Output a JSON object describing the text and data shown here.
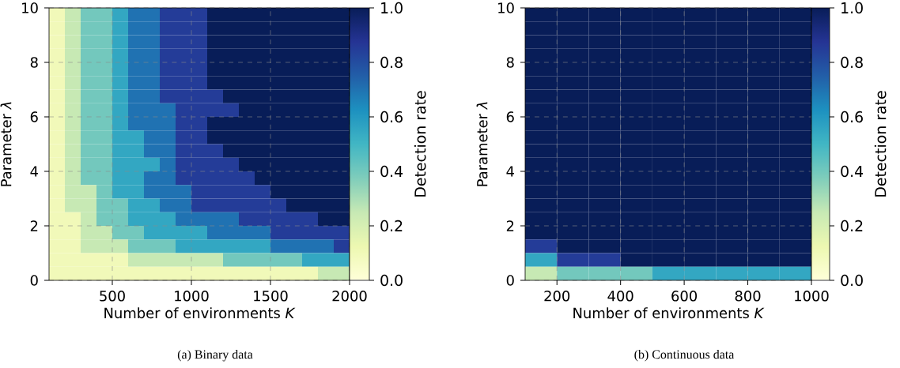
{
  "chart_data": [
    {
      "type": "heatmap",
      "xlabel": "Number of environments *K*",
      "ylabel": "Parameter *λ*",
      "clabel": "Detection rate",
      "annotations": [
        "(a) Binary data"
      ],
      "x": [
        150,
        250,
        350,
        450,
        550,
        650,
        750,
        850,
        950,
        1050,
        1150,
        1250,
        1350,
        1450,
        1550,
        1650,
        1750,
        1850,
        1950
      ],
      "xlim": [
        100,
        2000
      ],
      "ylim": [
        0,
        10
      ],
      "xticks": [
        500,
        1000,
        1500,
        2000
      ],
      "yticks": [
        0,
        2,
        4,
        6,
        8,
        10
      ],
      "grid": true,
      "clim": [
        0,
        1
      ],
      "cticks": [
        {
          "value": 0,
          "label": "0.0"
        },
        {
          "value": 0.2,
          "label": "0.2"
        },
        {
          "value": 0.4,
          "label": "0.4"
        },
        {
          "value": 0.6,
          "label": "0.6"
        },
        {
          "value": 0.8,
          "label": "0.8"
        },
        {
          "value": 1,
          "label": "1.0"
        }
      ],
      "cells": [
        [
          0.1,
          0.25,
          0.4,
          0.4,
          0.55,
          0.7,
          0.7,
          0.85,
          0.85,
          0.85,
          1,
          1,
          1,
          1,
          1,
          1,
          1,
          1,
          1
        ],
        [
          0.1,
          0.25,
          0.4,
          0.4,
          0.55,
          0.7,
          0.7,
          0.85,
          0.85,
          0.85,
          1,
          1,
          1,
          1,
          1,
          1,
          1,
          1,
          1
        ],
        [
          0.1,
          0.25,
          0.4,
          0.4,
          0.55,
          0.7,
          0.7,
          0.85,
          0.85,
          0.85,
          1,
          1,
          1,
          1,
          1,
          1,
          1,
          1,
          1
        ],
        [
          0.1,
          0.25,
          0.4,
          0.4,
          0.55,
          0.7,
          0.7,
          0.85,
          0.85,
          0.85,
          1,
          1,
          1,
          1,
          1,
          1,
          1,
          1,
          1
        ],
        [
          0.1,
          0.25,
          0.4,
          0.4,
          0.55,
          0.7,
          0.7,
          0.85,
          0.85,
          0.85,
          1,
          1,
          1,
          1,
          1,
          1,
          1,
          1,
          1
        ],
        [
          0.1,
          0.25,
          0.4,
          0.4,
          0.55,
          0.7,
          0.7,
          0.85,
          0.85,
          0.85,
          1,
          1,
          1,
          1,
          1,
          1,
          1,
          1,
          1
        ],
        [
          0.1,
          0.25,
          0.4,
          0.4,
          0.55,
          0.7,
          0.7,
          0.85,
          0.85,
          0.85,
          0.85,
          1,
          1,
          1,
          1,
          1,
          1,
          1,
          1
        ],
        [
          0.1,
          0.25,
          0.4,
          0.4,
          0.55,
          0.7,
          0.7,
          0.7,
          0.85,
          0.85,
          0.85,
          0.85,
          1,
          1,
          1,
          1,
          1,
          1,
          1
        ],
        [
          0.1,
          0.25,
          0.4,
          0.4,
          0.55,
          0.7,
          0.7,
          0.7,
          0.85,
          0.85,
          1,
          1,
          1,
          1,
          1,
          1,
          1,
          1,
          1
        ],
        [
          0.1,
          0.25,
          0.4,
          0.4,
          0.55,
          0.55,
          0.7,
          0.7,
          0.85,
          0.85,
          1,
          1,
          1,
          1,
          1,
          1,
          1,
          1,
          1
        ],
        [
          0.1,
          0.25,
          0.4,
          0.4,
          0.55,
          0.55,
          0.7,
          0.7,
          0.85,
          0.85,
          0.85,
          1,
          1,
          1,
          1,
          1,
          1,
          1,
          1
        ],
        [
          0.1,
          0.25,
          0.4,
          0.4,
          0.55,
          0.55,
          0.55,
          0.7,
          0.85,
          0.85,
          0.85,
          0.85,
          1,
          1,
          1,
          1,
          1,
          1,
          1
        ],
        [
          0.1,
          0.25,
          0.4,
          0.4,
          0.55,
          0.55,
          0.7,
          0.7,
          0.85,
          0.85,
          0.85,
          0.85,
          0.85,
          1,
          1,
          1,
          1,
          1,
          1
        ],
        [
          0.1,
          0.25,
          0.25,
          0.4,
          0.55,
          0.55,
          0.7,
          0.7,
          0.7,
          0.85,
          0.85,
          0.85,
          0.85,
          0.85,
          1,
          1,
          1,
          1,
          1
        ],
        [
          0.1,
          0.25,
          0.25,
          0.4,
          0.4,
          0.55,
          0.55,
          0.7,
          0.7,
          0.85,
          0.85,
          0.85,
          0.85,
          0.85,
          0.85,
          1,
          1,
          1,
          1
        ],
        [
          0.1,
          0.1,
          0.25,
          0.4,
          0.4,
          0.55,
          0.55,
          0.55,
          0.7,
          0.7,
          0.7,
          0.7,
          0.85,
          0.85,
          0.85,
          0.85,
          0.85,
          1,
          1
        ],
        [
          0.1,
          0.1,
          0.25,
          0.25,
          0.4,
          0.4,
          0.55,
          0.55,
          0.55,
          0.55,
          0.7,
          0.7,
          0.7,
          0.7,
          0.85,
          0.85,
          0.85,
          0.85,
          0.85
        ],
        [
          0.1,
          0.1,
          0.25,
          0.25,
          0.25,
          0.4,
          0.4,
          0.4,
          0.55,
          0.55,
          0.55,
          0.55,
          0.55,
          0.55,
          0.7,
          0.7,
          0.7,
          0.7,
          0.85
        ],
        [
          0.1,
          0.1,
          0.1,
          0.1,
          0.1,
          0.25,
          0.25,
          0.25,
          0.25,
          0.25,
          0.25,
          0.4,
          0.4,
          0.4,
          0.4,
          0.4,
          0.55,
          0.55,
          0.55
        ],
        [
          0.1,
          0.1,
          0.1,
          0.1,
          0.1,
          0.1,
          0.1,
          0.1,
          0.1,
          0.1,
          0.1,
          0.1,
          0.1,
          0.1,
          0.1,
          0.1,
          0.1,
          0.25,
          0.25
        ]
      ]
    },
    {
      "type": "heatmap",
      "xlabel": "Number of environments *K*",
      "ylabel": "Parameter *λ*",
      "clabel": "Detection rate",
      "annotations": [
        "(b) Continuous data"
      ],
      "x": [
        150,
        250,
        350,
        450,
        550,
        650,
        750,
        850,
        950
      ],
      "xlim": [
        100,
        1000
      ],
      "ylim": [
        0,
        10
      ],
      "xticks": [
        200,
        400,
        600,
        800,
        1000
      ],
      "yticks": [
        0,
        2,
        4,
        6,
        8,
        10
      ],
      "grid": true,
      "clim": [
        0,
        1
      ],
      "cticks": [
        {
          "value": 0,
          "label": "0.0"
        },
        {
          "value": 0.2,
          "label": "0.2"
        },
        {
          "value": 0.4,
          "label": "0.4"
        },
        {
          "value": 0.6,
          "label": "0.6"
        },
        {
          "value": 0.8,
          "label": "0.8"
        },
        {
          "value": 1,
          "label": "1.0"
        }
      ],
      "cells": [
        [
          1,
          1,
          1,
          1,
          1,
          1,
          1,
          1,
          1
        ],
        [
          1,
          1,
          1,
          1,
          1,
          1,
          1,
          1,
          1
        ],
        [
          1,
          1,
          1,
          1,
          1,
          1,
          1,
          1,
          1
        ],
        [
          1,
          1,
          1,
          1,
          1,
          1,
          1,
          1,
          1
        ],
        [
          1,
          1,
          1,
          1,
          1,
          1,
          1,
          1,
          1
        ],
        [
          1,
          1,
          1,
          1,
          1,
          1,
          1,
          1,
          1
        ],
        [
          1,
          1,
          1,
          1,
          1,
          1,
          1,
          1,
          1
        ],
        [
          1,
          1,
          1,
          1,
          1,
          1,
          1,
          1,
          1
        ],
        [
          1,
          1,
          1,
          1,
          1,
          1,
          1,
          1,
          1
        ],
        [
          1,
          1,
          1,
          1,
          1,
          1,
          1,
          1,
          1
        ],
        [
          1,
          1,
          1,
          1,
          1,
          1,
          1,
          1,
          1
        ],
        [
          1,
          1,
          1,
          1,
          1,
          1,
          1,
          1,
          1
        ],
        [
          1,
          1,
          1,
          1,
          1,
          1,
          1,
          1,
          1
        ],
        [
          1,
          1,
          1,
          1,
          1,
          1,
          1,
          1,
          1
        ],
        [
          1,
          1,
          1,
          1,
          1,
          1,
          1,
          1,
          1
        ],
        [
          1,
          1,
          1,
          1,
          1,
          1,
          1,
          1,
          1
        ],
        [
          1,
          1,
          1,
          1,
          1,
          1,
          1,
          1,
          1
        ],
        [
          0.85,
          1,
          1,
          1,
          1,
          1,
          1,
          1,
          1
        ],
        [
          0.55,
          0.85,
          0.85,
          1,
          1,
          1,
          1,
          1,
          1
        ],
        [
          0.25,
          0.4,
          0.4,
          0.4,
          0.55,
          0.55,
          0.55,
          0.55,
          0.55
        ]
      ]
    }
  ]
}
